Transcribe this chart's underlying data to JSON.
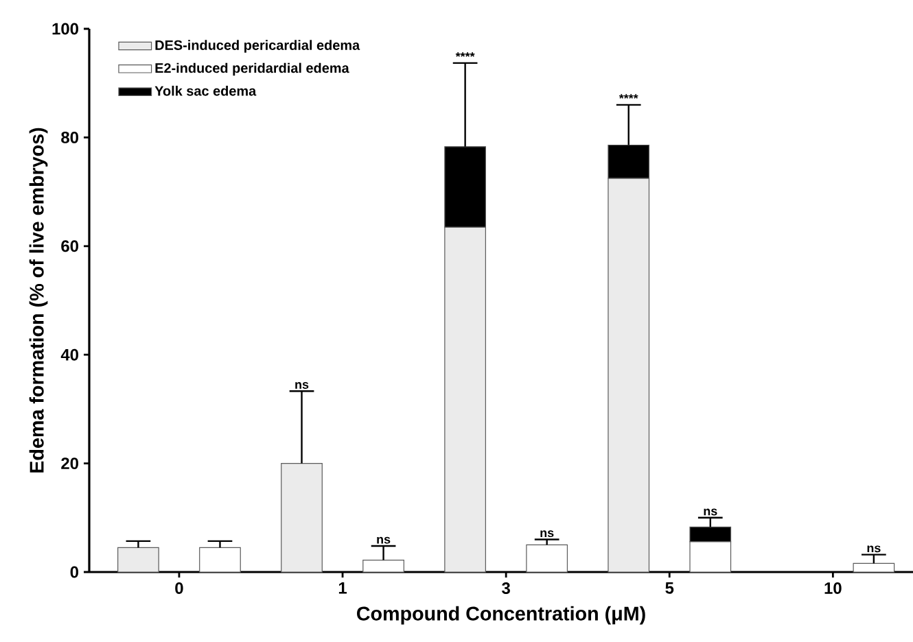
{
  "chart_data": {
    "type": "bar",
    "stacked": true,
    "xlabel": "Compound Concentration (μM)",
    "ylabel": "Edema formation (% of live embryos)",
    "categories": [
      "0",
      null,
      "1",
      null,
      "3",
      null,
      "5",
      null,
      "10",
      null
    ],
    "series": [
      {
        "name": "DES-induced pericardial edema",
        "color": "#ebebeb",
        "values": [
          4.5,
          null,
          20.0,
          null,
          63.5,
          null,
          72.5,
          null,
          0,
          null
        ],
        "errors": [
          [
            4.5,
            5.7
          ],
          null,
          [
            20.0,
            33.3
          ],
          null,
          null,
          null,
          null,
          null,
          null,
          null
        ]
      },
      {
        "name": "E2-induced peridardial edema",
        "color": "#ffffff",
        "values": [
          null,
          4.5,
          null,
          2.2,
          null,
          5.0,
          null,
          5.6,
          null,
          1.6
        ],
        "errors": [
          null,
          [
            4.5,
            5.7
          ],
          null,
          [
            2.2,
            4.8
          ],
          null,
          [
            5.0,
            6.0
          ],
          null,
          null,
          null,
          [
            1.6,
            3.2
          ]
        ],
        "value_labels": [
          null,
          null,
          null,
          "ns",
          null,
          "ns",
          null,
          "ns",
          null,
          "ns"
        ]
      },
      {
        "name": "Yolk sac edema",
        "color": "#000000",
        "values": [
          null,
          null,
          null,
          null,
          14.8,
          null,
          6.1,
          2.7,
          null,
          null
        ],
        "errors": [
          null,
          null,
          null,
          null,
          [
            78.3,
            93.7
          ],
          null,
          [
            78.6,
            86.0
          ],
          [
            8.3,
            10.0
          ],
          null,
          null
        ]
      }
    ],
    "ylim": [
      0,
      100
    ],
    "yticks": [
      0,
      20,
      40,
      60,
      80,
      100
    ],
    "grid": false,
    "legend": "top left",
    "annotations": [
      "ns",
      "****",
      "****"
    ]
  }
}
